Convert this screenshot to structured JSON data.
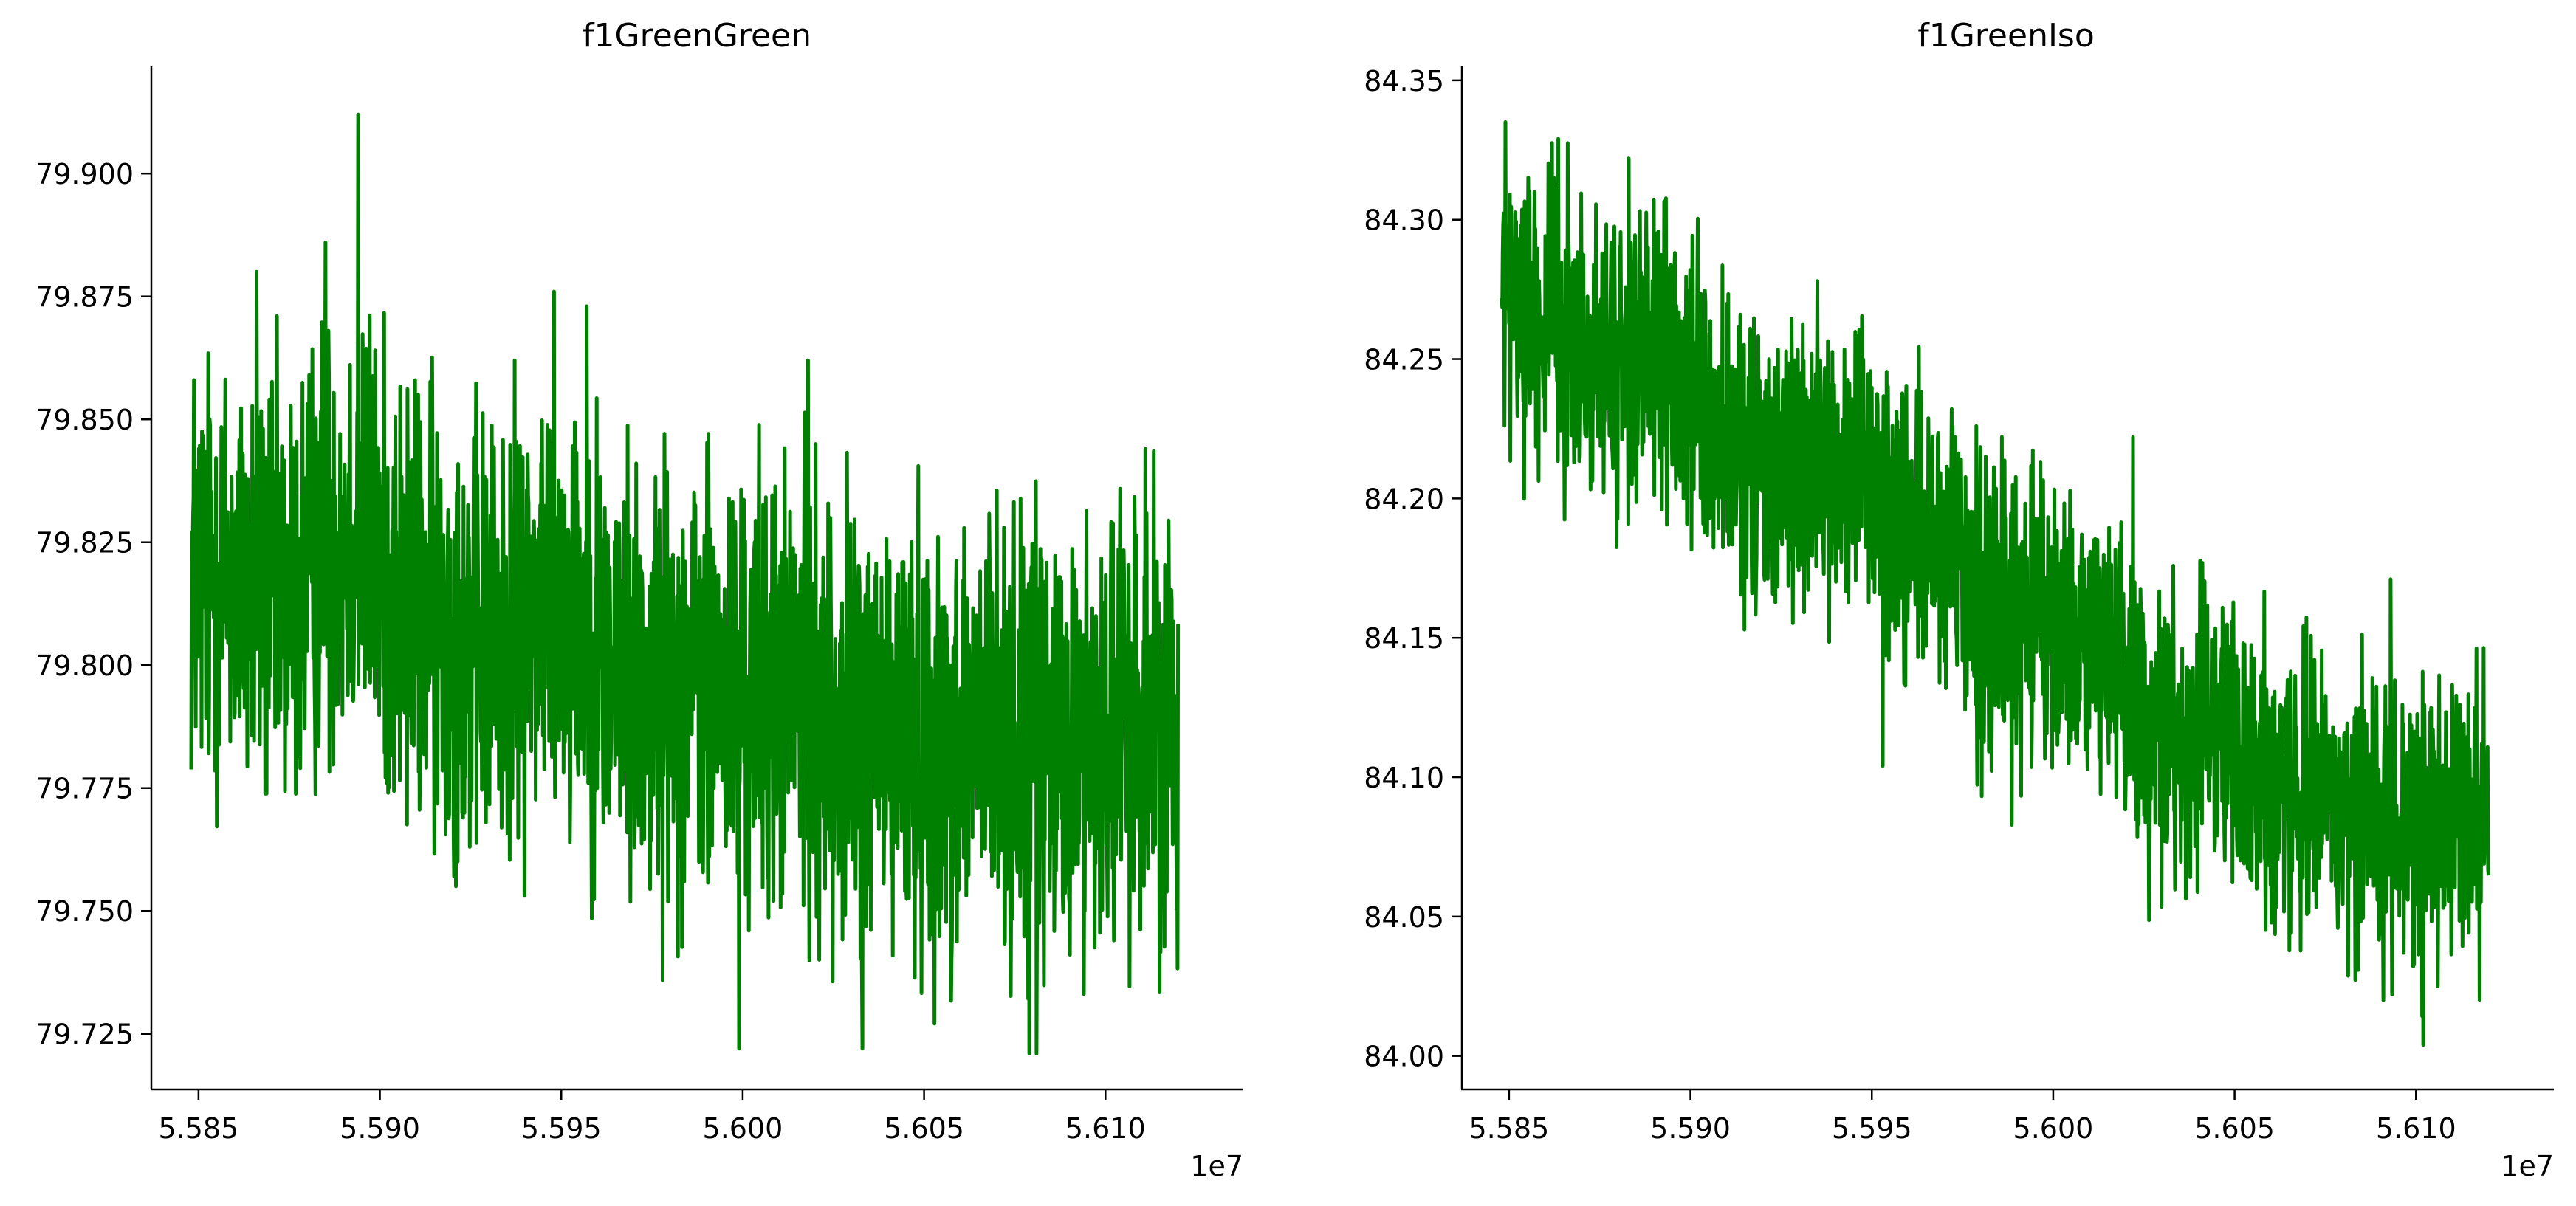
{
  "chart_data": [
    {
      "type": "line",
      "title": "f1GreenGreen",
      "xlabel": "",
      "ylabel": "",
      "x_offset_label": "1e7",
      "xlim": [
        5.5837,
        5.6138
      ],
      "ylim": [
        79.7137,
        79.9218
      ],
      "xticks": [
        5.585,
        5.59,
        5.595,
        5.6,
        5.605,
        5.61
      ],
      "xtick_labels": [
        "5.585",
        "5.590",
        "5.595",
        "5.600",
        "5.605",
        "5.610"
      ],
      "yticks": [
        79.725,
        79.75,
        79.775,
        79.8,
        79.825,
        79.85,
        79.875,
        79.9
      ],
      "ytick_labels": [
        "79.725",
        "79.750",
        "79.775",
        "79.800",
        "79.825",
        "79.850",
        "79.875",
        "79.900"
      ],
      "grid": false,
      "series": [
        {
          "color": "#008000",
          "noise_amplitude": 0.028,
          "x": [
            5.5848,
            5.5855,
            5.5865,
            5.5875,
            5.5885,
            5.5895,
            5.5905,
            5.5915,
            5.5925,
            5.5935,
            5.5945,
            5.5955,
            5.5965,
            5.5975,
            5.5985,
            5.5995,
            5.6005,
            5.6015,
            5.6025,
            5.6035,
            5.6045,
            5.6055,
            5.6065,
            5.6075,
            5.6085,
            5.6095,
            5.6105,
            5.6112,
            5.612
          ],
          "y": [
            79.82,
            79.818,
            79.816,
            79.812,
            79.826,
            79.828,
            79.814,
            79.81,
            79.805,
            79.805,
            79.815,
            79.81,
            79.8,
            79.795,
            79.798,
            79.792,
            79.795,
            79.796,
            79.788,
            79.786,
            79.786,
            79.784,
            79.786,
            79.784,
            79.782,
            79.786,
            79.787,
            79.79,
            79.79
          ],
          "peaks": [
            {
              "x": 5.5894,
              "y": 79.912
            },
            {
              "x": 5.5885,
              "y": 79.886
            },
            {
              "x": 5.5866,
              "y": 79.88
            },
            {
              "x": 5.5948,
              "y": 79.876
            },
            {
              "x": 5.5957,
              "y": 79.873
            },
            {
              "x": 5.6018,
              "y": 79.862
            },
            {
              "x": 5.5999,
              "y": 79.722
            },
            {
              "x": 5.6033,
              "y": 79.722
            },
            {
              "x": 5.6079,
              "y": 79.721
            },
            {
              "x": 5.6081,
              "y": 79.721
            },
            {
              "x": 5.6111,
              "y": 79.844
            }
          ]
        }
      ]
    },
    {
      "type": "line",
      "title": "f1GreenIso",
      "xlabel": "",
      "ylabel": "",
      "x_offset_label": "1e7",
      "xlim": [
        5.5837,
        5.6138
      ],
      "ylim": [
        83.988,
        84.355
      ],
      "xticks": [
        5.585,
        5.59,
        5.595,
        5.6,
        5.605,
        5.61
      ],
      "xtick_labels": [
        "5.585",
        "5.590",
        "5.595",
        "5.600",
        "5.605",
        "5.610"
      ],
      "yticks": [
        84.0,
        84.05,
        84.1,
        84.15,
        84.2,
        84.25,
        84.3,
        84.35
      ],
      "ytick_labels": [
        "84.00",
        "84.05",
        "84.10",
        "84.15",
        "84.20",
        "84.25",
        "84.30",
        "84.35"
      ],
      "grid": false,
      "series": [
        {
          "color": "#008000",
          "noise_amplitude": 0.032,
          "x": [
            5.5848,
            5.5855,
            5.5865,
            5.5875,
            5.5885,
            5.5895,
            5.5905,
            5.5915,
            5.5925,
            5.5935,
            5.5945,
            5.5955,
            5.5965,
            5.5975,
            5.5985,
            5.5995,
            5.6005,
            5.6015,
            5.6025,
            5.6035,
            5.6045,
            5.6055,
            5.6065,
            5.6075,
            5.6085,
            5.6095,
            5.6105,
            5.6112,
            5.612
          ],
          "y": [
            84.27,
            84.268,
            84.262,
            84.245,
            84.25,
            84.245,
            84.225,
            84.21,
            84.212,
            84.21,
            84.21,
            84.198,
            84.182,
            84.17,
            84.16,
            84.155,
            84.152,
            84.145,
            84.12,
            84.118,
            84.115,
            84.1,
            84.098,
            84.092,
            84.088,
            84.085,
            84.08,
            84.085,
            84.09
          ],
          "peaks": [
            {
              "x": 5.5849,
              "y": 84.335
            },
            {
              "x": 5.5883,
              "y": 84.322
            },
            {
              "x": 5.5935,
              "y": 84.278
            },
            {
              "x": 5.5953,
              "y": 84.104
            },
            {
              "x": 5.6022,
              "y": 84.222
            },
            {
              "x": 5.6093,
              "y": 84.171
            },
            {
              "x": 5.6091,
              "y": 84.02
            },
            {
              "x": 5.6102,
              "y": 84.004
            },
            {
              "x": 5.6106,
              "y": 84.025
            }
          ]
        }
      ]
    }
  ]
}
